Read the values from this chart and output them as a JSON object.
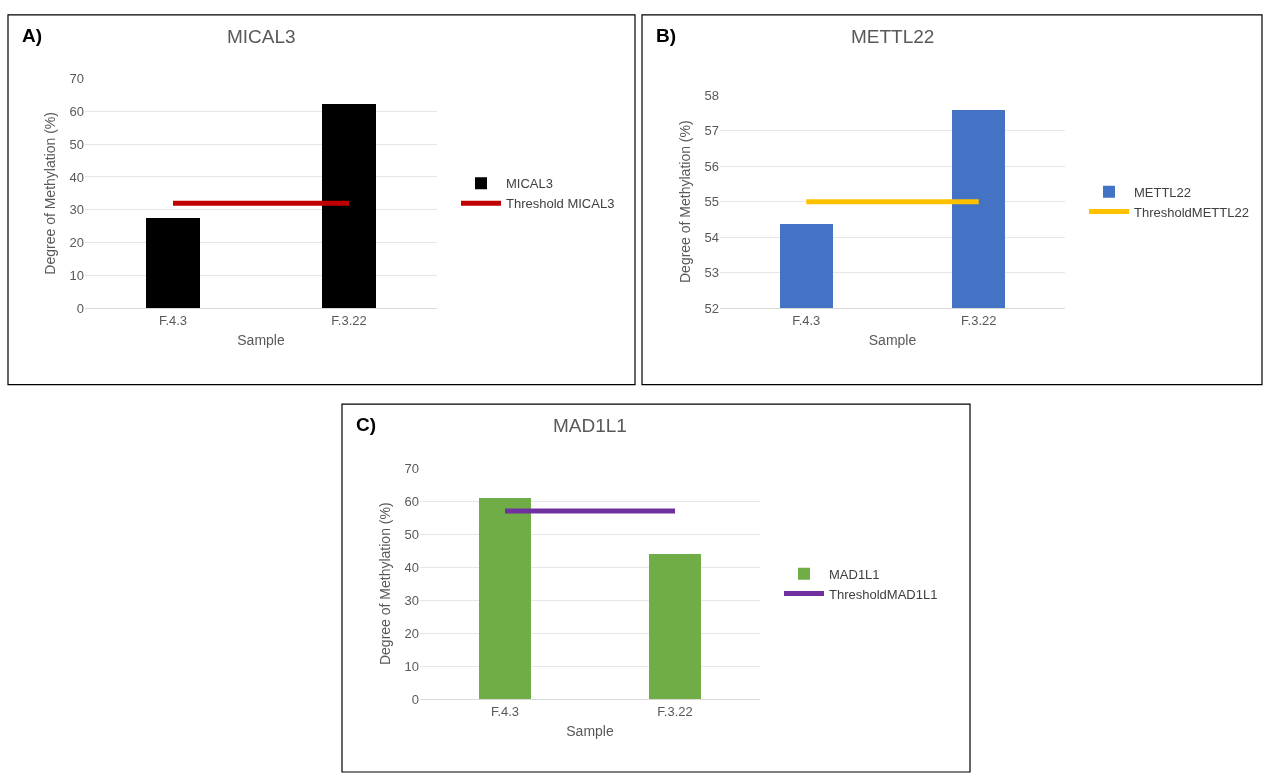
{
  "chart_data": [
    {
      "type": "bar",
      "title": "MICAL3",
      "xlabel": "Sample",
      "ylabel": "Degree of Methylation (%)",
      "categories": [
        "F.4.3",
        "F.3.22"
      ],
      "series": [
        {
          "name": "MICAL3",
          "color": "#000000",
          "values": [
            27.5,
            62.5
          ]
        },
        {
          "name": "Threshold MICAL3",
          "type": "line",
          "color": "#c00000",
          "values": [
            32,
            32
          ]
        }
      ],
      "ylim": [
        0,
        70
      ],
      "yticks": [
        0,
        10,
        20,
        30,
        40,
        50,
        60,
        70
      ],
      "grid": "y",
      "legend": "right",
      "annotations": [
        "A)"
      ]
    },
    {
      "type": "bar",
      "title": "METTL22",
      "xlabel": "Sample",
      "ylabel": "Degree of Methylation (%)",
      "categories": [
        "F.4.3",
        "F.3.22"
      ],
      "series": [
        {
          "name": "METTL22",
          "color": "#4472c4",
          "values": [
            54.35,
            57.57
          ]
        },
        {
          "name": "ThresholdMETTL22",
          "type": "line",
          "color": "#ffc000",
          "values": [
            55,
            55
          ]
        }
      ],
      "ylim": [
        52,
        58
      ],
      "yticks": [
        52,
        53,
        54,
        55,
        56,
        57,
        58
      ],
      "grid": "y",
      "legend": "right",
      "annotations": [
        "B)"
      ]
    },
    {
      "type": "bar",
      "title": "MAD1L1",
      "xlabel": "Sample",
      "ylabel": "Degree of Methylation (%)",
      "categories": [
        "F.4.3",
        "F.3.22"
      ],
      "series": [
        {
          "name": "MAD1L1",
          "color": "#70ad47",
          "values": [
            61,
            44
          ]
        },
        {
          "name": "ThresholdMAD1L1",
          "type": "line",
          "color": "#7030a0",
          "values": [
            57,
            57
          ]
        }
      ],
      "ylim": [
        0,
        70
      ],
      "yticks": [
        0,
        10,
        20,
        30,
        40,
        50,
        60,
        70
      ],
      "grid": "y",
      "legend": "right",
      "annotations": [
        "C)"
      ]
    }
  ]
}
